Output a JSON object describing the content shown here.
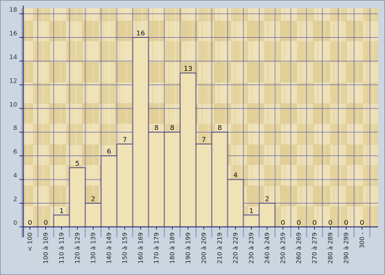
{
  "chart_data": {
    "type": "bar",
    "title": "",
    "xlabel": "",
    "ylabel": "",
    "ylim": [
      0,
      18
    ],
    "yticks": [
      0,
      2,
      4,
      6,
      8,
      10,
      12,
      14,
      16,
      18
    ],
    "grid": true,
    "categories": [
      "< 100",
      "100 à 109",
      "110 à 119",
      "120 à 129",
      "130 à 139",
      "140 à 149",
      "150 à 159",
      "160 à 169",
      "170 à 179",
      "180 à 189",
      "190 à 199",
      "200 à 209",
      "210 à 219",
      "220 à 229",
      "230 à 239",
      "240 à 249",
      "250 à 259",
      "260 à 269",
      "270 à 279",
      "280 à 289",
      "290 à 299",
      "300 -"
    ],
    "values": [
      0,
      0,
      1,
      5,
      2,
      6,
      7,
      16,
      8,
      8,
      13,
      7,
      8,
      4,
      1,
      2,
      0,
      0,
      0,
      0,
      0,
      0
    ],
    "colors": {
      "bar_fill": "#f1e2b6",
      "bar_stroke": "#2a2a7a",
      "grid": "#6a6aa8",
      "axis": "#1a1a6a",
      "wood_light": "#eedfb0",
      "wood_dark": "#dcc58c"
    }
  }
}
